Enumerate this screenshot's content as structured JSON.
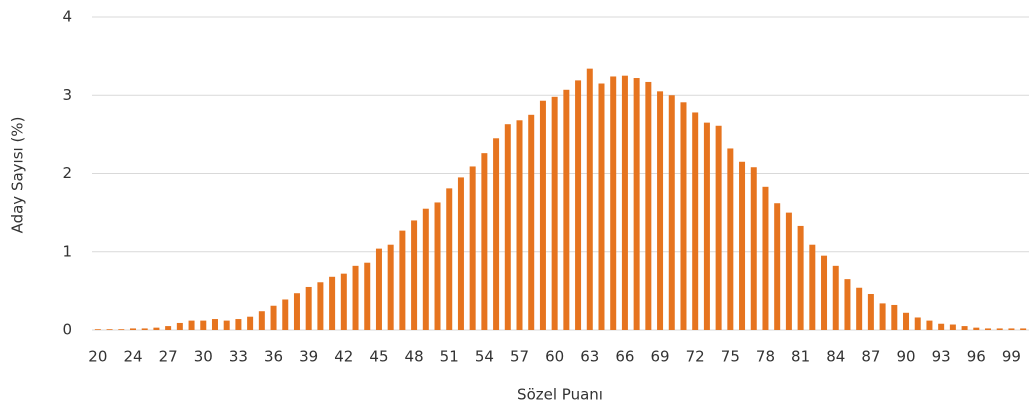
{
  "chart_data": {
    "type": "bar",
    "xlabel": "Sözel Puanı",
    "ylabel": "Aday Sayısı (%)",
    "categories": [
      "20",
      null,
      null,
      "24",
      null,
      null,
      "27",
      null,
      null,
      "30",
      null,
      null,
      "33",
      null,
      null,
      "36",
      null,
      null,
      "39",
      null,
      null,
      "42",
      null,
      null,
      "45",
      null,
      null,
      "48",
      null,
      null,
      "51",
      null,
      null,
      "54",
      null,
      null,
      "57",
      null,
      null,
      "60",
      null,
      null,
      "63",
      null,
      null,
      "66",
      null,
      null,
      "69",
      null,
      null,
      "72",
      null,
      null,
      "75",
      null,
      null,
      "78",
      null,
      null,
      "81",
      null,
      null,
      "84",
      null,
      null,
      "87",
      null,
      null,
      "90",
      null,
      null,
      "93",
      null,
      null,
      "96",
      null,
      null,
      "99",
      null
    ],
    "values": [
      0.01,
      0.01,
      0.01,
      0.02,
      0.02,
      0.03,
      0.05,
      0.09,
      0.12,
      0.12,
      0.14,
      0.12,
      0.14,
      0.17,
      0.24,
      0.31,
      0.39,
      0.47,
      0.55,
      0.61,
      0.68,
      0.72,
      0.82,
      0.86,
      1.04,
      1.09,
      1.27,
      1.4,
      1.55,
      1.63,
      1.81,
      1.95,
      2.09,
      2.26,
      2.45,
      2.63,
      2.68,
      2.75,
      2.93,
      2.98,
      3.07,
      3.19,
      3.34,
      3.15,
      3.24,
      3.25,
      3.22,
      3.17,
      3.05,
      3.0,
      2.91,
      2.78,
      2.65,
      2.61,
      2.32,
      2.15,
      2.08,
      1.83,
      1.62,
      1.5,
      1.33,
      1.09,
      0.95,
      0.82,
      0.65,
      0.54,
      0.46,
      0.34,
      0.32,
      0.22,
      0.16,
      0.12,
      0.08,
      0.07,
      0.05,
      0.03,
      0.02,
      0.02,
      0.02,
      0.02
    ],
    "color": "#e6741f",
    "ylim": [
      0,
      4
    ],
    "yticks": [
      0,
      1,
      2,
      3,
      4
    ],
    "grid": true
  }
}
